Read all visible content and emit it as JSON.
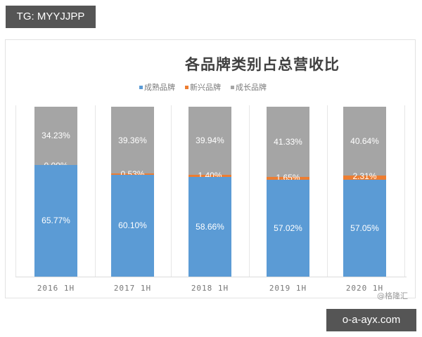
{
  "overlay": {
    "tg_label": "TG: MYYJJPP",
    "site_label": "o-a-ayx.com"
  },
  "watermark": "@格隆汇",
  "colors": {
    "mature": "#5B9BD5",
    "emerging": "#ED7D31",
    "growth": "#A5A5A5"
  },
  "chart_data": {
    "type": "bar",
    "stacked": true,
    "percent": true,
    "title": "各品牌类别占总营收比",
    "xlabel": "",
    "ylabel": "",
    "ylim": [
      0,
      100
    ],
    "grid": false,
    "legend_position": "top",
    "categories": [
      "2016 1H",
      "2017 1H",
      "2018 1H",
      "2019 1H",
      "2020 1H"
    ],
    "series": [
      {
        "name": "成熟品牌",
        "color": "#5B9BD5",
        "values": [
          65.77,
          60.1,
          58.66,
          57.02,
          57.05
        ],
        "labels": [
          "65.77%",
          "60.10%",
          "58.66%",
          "57.02%",
          "57.05%"
        ]
      },
      {
        "name": "新兴品牌",
        "color": "#ED7D31",
        "values": [
          0.0,
          0.53,
          1.4,
          1.65,
          2.31
        ],
        "labels": [
          "0.00%",
          "0.53%",
          "1.40%",
          "1.65%",
          "2.31%"
        ]
      },
      {
        "name": "成长品牌",
        "color": "#A5A5A5",
        "values": [
          34.23,
          39.36,
          39.94,
          41.33,
          40.64
        ],
        "labels": [
          "34.23%",
          "39.36%",
          "39.94%",
          "41.33%",
          "40.64%"
        ]
      }
    ]
  }
}
